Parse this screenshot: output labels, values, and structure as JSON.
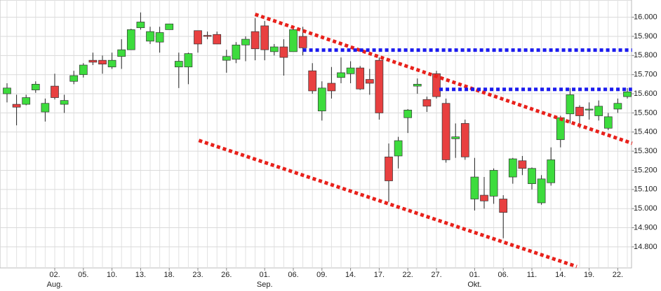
{
  "chart_data": {
    "type": "candlestick",
    "categories": [
      null,
      null,
      null,
      null,
      null,
      "02.",
      null,
      null,
      "05.",
      null,
      null,
      "10.",
      null,
      null,
      "13.",
      null,
      null,
      "18.",
      null,
      null,
      "23.",
      null,
      null,
      "26.",
      null,
      null,
      null,
      "01.",
      null,
      null,
      "06.",
      null,
      null,
      "09.",
      null,
      null,
      "14.",
      null,
      null,
      "17.",
      null,
      null,
      "22.",
      null,
      null,
      "27.",
      null,
      null,
      null,
      "01.",
      null,
      null,
      "06.",
      null,
      null,
      "11.",
      null,
      null,
      "14.",
      null,
      null,
      "19.",
      null,
      null,
      "22.",
      null
    ],
    "category_months": [
      null,
      null,
      null,
      null,
      null,
      "Aug.",
      null,
      null,
      null,
      null,
      null,
      null,
      null,
      null,
      null,
      null,
      null,
      null,
      null,
      null,
      null,
      null,
      null,
      null,
      null,
      null,
      null,
      "Sep.",
      null,
      null,
      null,
      null,
      null,
      null,
      null,
      null,
      null,
      null,
      null,
      null,
      null,
      null,
      null,
      null,
      null,
      null,
      null,
      null,
      null,
      "Okt.",
      null,
      null,
      null,
      null,
      null,
      null,
      null,
      null,
      null,
      null,
      null,
      null,
      null,
      null,
      null,
      null
    ],
    "open": [
      15600,
      15545,
      15545,
      15620,
      15505,
      15640,
      15545,
      15665,
      15700,
      15775,
      15775,
      15740,
      15795,
      15830,
      15945,
      15875,
      15870,
      15935,
      15740,
      15740,
      15930,
      15905,
      15910,
      15775,
      15780,
      15855,
      15925,
      15955,
      15820,
      15845,
      15820,
      15900,
      15720,
      15510,
      15655,
      15685,
      15705,
      15735,
      15675,
      15775,
      15270,
      15275,
      15475,
      15640,
      15570,
      15705,
      15550,
      15365,
      15445,
      15050,
      15070,
      15065,
      15050,
      15165,
      15250,
      15130,
      15030,
      15135,
      15360,
      15495,
      15530,
      15515,
      15485,
      15420,
      15520,
      15585
    ],
    "high": [
      15655,
      15595,
      15595,
      15665,
      15575,
      15705,
      15595,
      15720,
      15760,
      15815,
      15800,
      15815,
      15885,
      15940,
      16025,
      15950,
      15950,
      15965,
      15815,
      15815,
      15930,
      15925,
      15925,
      15830,
      15870,
      15900,
      15995,
      15980,
      15860,
      15885,
      15955,
      15950,
      15760,
      15665,
      15740,
      15790,
      15770,
      15745,
      15730,
      15790,
      15340,
      15375,
      15520,
      15680,
      15585,
      15720,
      15575,
      15445,
      15465,
      15265,
      15165,
      15210,
      15070,
      15265,
      15275,
      15215,
      15175,
      15320,
      15485,
      15630,
      15540,
      15555,
      15565,
      15500,
      15575,
      15630
    ],
    "low": [
      15555,
      15435,
      15540,
      15605,
      15455,
      15570,
      15500,
      15650,
      15685,
      15750,
      15705,
      15730,
      15730,
      15830,
      15935,
      15860,
      15815,
      15935,
      15630,
      15650,
      15815,
      15885,
      15860,
      15710,
      15760,
      15770,
      15775,
      15775,
      15800,
      15695,
      15820,
      15800,
      15600,
      15460,
      15575,
      15655,
      15655,
      15620,
      15595,
      15465,
      15035,
      15210,
      15395,
      15600,
      15505,
      15575,
      15240,
      15265,
      15255,
      14990,
      15000,
      15025,
      14845,
      15130,
      15175,
      15100,
      15020,
      15120,
      15320,
      15445,
      15420,
      15465,
      15460,
      15410,
      15500,
      15575
    ],
    "close": [
      15630,
      15530,
      15580,
      15650,
      15550,
      15580,
      15565,
      15695,
      15750,
      15765,
      15755,
      15775,
      15830,
      15935,
      15975,
      15925,
      15920,
      15965,
      15770,
      15810,
      15860,
      15900,
      15860,
      15795,
      15855,
      15885,
      15835,
      15830,
      15845,
      15790,
      15935,
      15840,
      15615,
      15630,
      15615,
      15710,
      15735,
      15625,
      15655,
      15500,
      15145,
      15355,
      15515,
      15650,
      15535,
      15585,
      15255,
      15375,
      15270,
      15165,
      15040,
      15200,
      14980,
      15260,
      15210,
      15210,
      15155,
      15255,
      15475,
      15595,
      15485,
      15520,
      15535,
      15480,
      15550,
      15610
    ],
    "up_color": "#3ddc3d",
    "down_color": "#e84040",
    "ylim": [
      14690,
      16090
    ],
    "yticks": [
      {
        "value": 14800,
        "label": "14.800"
      },
      {
        "value": 14900,
        "label": "14.900"
      },
      {
        "value": 15000,
        "label": "15.000"
      },
      {
        "value": 15100,
        "label": "15.100"
      },
      {
        "value": 15200,
        "label": "15.200"
      },
      {
        "value": 15300,
        "label": "15.300"
      },
      {
        "value": 15400,
        "label": "15.400"
      },
      {
        "value": 15500,
        "label": "15.500"
      },
      {
        "value": 15600,
        "label": "15.600"
      },
      {
        "value": 15700,
        "label": "15.700"
      },
      {
        "value": 15800,
        "label": "15.800"
      },
      {
        "value": 15900,
        "label": "15.900"
      },
      {
        "value": 16000,
        "label": "16.000"
      }
    ],
    "grid": true,
    "trend_lines": [
      {
        "color": "#e8211b",
        "start": [
          26,
          16015
        ],
        "end": [
          65.5,
          15341
        ]
      },
      {
        "color": "#e8211b",
        "start": [
          20.1,
          15356
        ],
        "end": [
          59.7,
          14697
        ]
      },
      {
        "color": "#1a1aee",
        "start": [
          31,
          15828
        ],
        "end": [
          65.5,
          15828
        ]
      },
      {
        "color": "#1a1aee",
        "start": [
          45.3,
          15623
        ],
        "end": [
          65.5,
          15623
        ]
      }
    ]
  }
}
